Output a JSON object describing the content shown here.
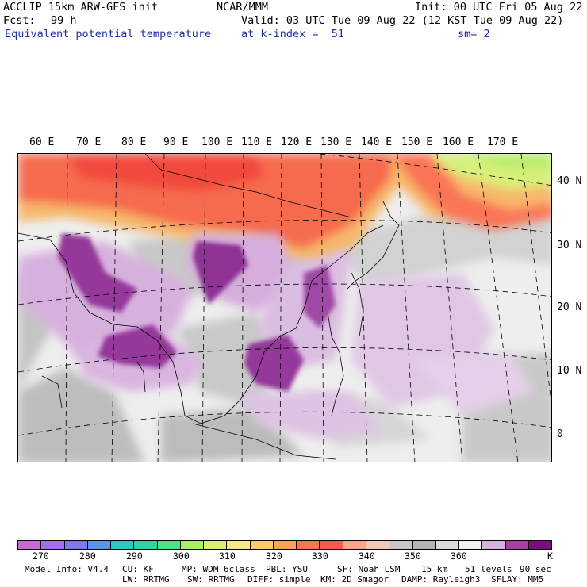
{
  "header": {
    "line1_left": "ACCLIP 15km ARW-GFS init",
    "line1_center": "NCAR/MMM",
    "line1_right": "Init: 00 UTC Fri 05 Aug 22",
    "fcst_label": "Fcst:",
    "fcst_value": "99 h",
    "valid": "Valid: 03 UTC Tue 09 Aug 22 (12 KST Tue 09 Aug 22)",
    "field_name": "Equivalent potential temperature",
    "level": "at k-index =  51",
    "smoothing": "sm= 2"
  },
  "map": {
    "lon_labels": [
      "60 E",
      "70 E",
      "80 E",
      "90 E",
      "100 E",
      "110 E",
      "120 E",
      "130 E",
      "140 E",
      "150 E",
      "160 E",
      "170 E"
    ],
    "lat_labels": [
      "40 N",
      "30 N",
      "20 N",
      "10 N",
      "0"
    ]
  },
  "colorbar": {
    "colors": [
      "#c86ad2",
      "#a46ee6",
      "#7e78e8",
      "#5a96e4",
      "#2ec7c4",
      "#2fd4a0",
      "#49e284",
      "#a6f06c",
      "#d8f07a",
      "#f6e88a",
      "#fbcb74",
      "#fba45e",
      "#fa7556",
      "#f65a4c",
      "#f9a68a",
      "#f0cab4",
      "#c6c6c6",
      "#b4b4b4",
      "#dadada",
      "#f2f2f2",
      "#d8b0dc",
      "#a440a6",
      "#7a0e7c"
    ],
    "tick_labels": [
      "270",
      "280",
      "290",
      "300",
      "310",
      "320",
      "330",
      "340",
      "350",
      "360"
    ],
    "unit": "K"
  },
  "footer": {
    "line1": [
      {
        "key": "model",
        "text": "Model Info: V4.4"
      },
      {
        "key": "cu",
        "text": "CU: KF"
      },
      {
        "key": "mp",
        "text": "MP: WDM 6class"
      },
      {
        "key": "pbl",
        "text": "PBL: YSU"
      },
      {
        "key": "sf",
        "text": "SF: Noah LSM"
      },
      {
        "key": "res",
        "text": "15 km"
      },
      {
        "key": "levels",
        "text": "51 levels"
      },
      {
        "key": "dt",
        "text": "90 sec"
      }
    ],
    "line2": [
      {
        "key": "lw",
        "text": "LW: RRTMG"
      },
      {
        "key": "sw",
        "text": "SW: RRTMG"
      },
      {
        "key": "diff",
        "text": "DIFF: simple"
      },
      {
        "key": "km",
        "text": "KM: 2D Smagor"
      },
      {
        "key": "damp",
        "text": "DAMP: Rayleigh3"
      },
      {
        "key": "sflay",
        "text": "SFLAY: MM5"
      }
    ]
  }
}
